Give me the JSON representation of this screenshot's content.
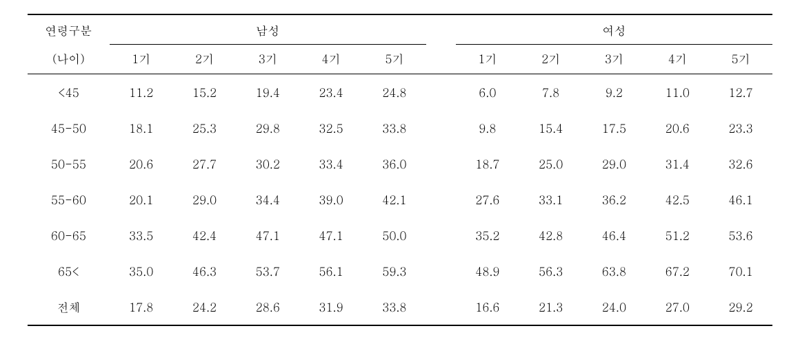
{
  "table": {
    "type": "table",
    "background_color": "#ffffff",
    "text_color": "#000000",
    "border_color": "#000000",
    "font_size_pt": 13,
    "header": {
      "row_label_line1": "연령구분",
      "row_label_line2": "(나이)",
      "groups": [
        {
          "label": "남성",
          "sub": [
            "1기",
            "2기",
            "3기",
            "4기",
            "5기"
          ]
        },
        {
          "label": "여성",
          "sub": [
            "1기",
            "2기",
            "3기",
            "4기",
            "5기"
          ]
        }
      ]
    },
    "rows": [
      {
        "label": "<45",
        "male": [
          "11.2",
          "15.2",
          "19.4",
          "23.4",
          "24.8"
        ],
        "female": [
          "6.0",
          "7.8",
          "9.2",
          "11.0",
          "12.7"
        ]
      },
      {
        "label": "45-50",
        "male": [
          "18.1",
          "25.3",
          "29.8",
          "32.5",
          "33.8"
        ],
        "female": [
          "9.8",
          "15.4",
          "17.5",
          "20.6",
          "23.3"
        ]
      },
      {
        "label": "50-55",
        "male": [
          "20.6",
          "27.7",
          "30.2",
          "33.4",
          "36.0"
        ],
        "female": [
          "18.7",
          "25.0",
          "29.0",
          "31.4",
          "32.6"
        ]
      },
      {
        "label": "55-60",
        "male": [
          "20.1",
          "29.0",
          "34.4",
          "39.0",
          "42.1"
        ],
        "female": [
          "27.6",
          "33.1",
          "36.2",
          "42.5",
          "46.1"
        ]
      },
      {
        "label": "60-65",
        "male": [
          "33.5",
          "42.4",
          "47.1",
          "47.1",
          "50.0"
        ],
        "female": [
          "35.2",
          "42.8",
          "46.4",
          "51.2",
          "53.6"
        ]
      },
      {
        "label": "65<",
        "male": [
          "35.0",
          "46.3",
          "53.7",
          "56.1",
          "59.3"
        ],
        "female": [
          "48.9",
          "56.3",
          "63.8",
          "67.2",
          "70.1"
        ]
      },
      {
        "label": "전체",
        "male": [
          "17.8",
          "24.2",
          "28.6",
          "31.9",
          "33.8"
        ],
        "female": [
          "16.6",
          "21.3",
          "24.0",
          "27.0",
          "29.2"
        ]
      }
    ]
  }
}
